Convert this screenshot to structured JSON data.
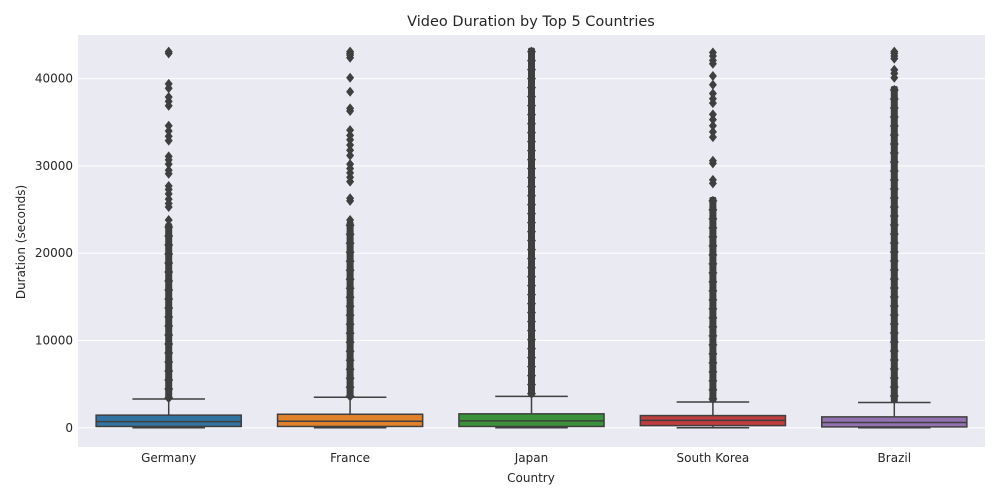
{
  "chart_data": {
    "type": "box",
    "title": "Video Duration by Top 5 Countries",
    "xlabel": "Country",
    "ylabel": "Duration (seconds)",
    "ylim": [
      -2200,
      45000
    ],
    "yticks": [
      0,
      10000,
      20000,
      30000,
      40000
    ],
    "grid": true,
    "style": "seaborn-darkgrid",
    "categories": [
      "Germany",
      "France",
      "Japan",
      "South Korea",
      "Brazil"
    ],
    "series": [
      {
        "category": "Germany",
        "color": "#3274a1",
        "whisker_low": 0,
        "q1": 150,
        "median": 700,
        "q3": 1450,
        "whisker_high": 3300,
        "outliers_dense": [
          3300,
          23000
        ],
        "outliers": [
          23800,
          25300,
          25700,
          26200,
          26800,
          27300,
          27700,
          29100,
          29500,
          30200,
          30700,
          31100,
          32900,
          33400,
          34000,
          34600,
          36900,
          37400,
          37900,
          38900,
          39400,
          42900,
          43100
        ]
      },
      {
        "category": "France",
        "color": "#e1812c",
        "whisker_low": 0,
        "q1": 150,
        "median": 750,
        "q3": 1550,
        "whisker_high": 3500,
        "outliers_dense": [
          3500,
          23200
        ],
        "outliers": [
          23800,
          26000,
          26300,
          28200,
          28700,
          29200,
          29700,
          30200,
          31200,
          31800,
          32400,
          33000,
          33500,
          34100,
          36300,
          36600,
          38500,
          40100,
          42400,
          42700,
          42900,
          43100
        ]
      },
      {
        "category": "Japan",
        "color": "#3a923a",
        "whisker_low": 0,
        "q1": 150,
        "median": 800,
        "q3": 1600,
        "whisker_high": 3600,
        "outliers_dense": [
          3600,
          43100
        ],
        "outliers": []
      },
      {
        "category": "South Korea",
        "color": "#c03d3e",
        "whisker_low": 0,
        "q1": 250,
        "median": 850,
        "q3": 1400,
        "whisker_high": 2950,
        "outliers_dense": [
          2950,
          26000
        ],
        "outliers": [
          28000,
          28400,
          30300,
          30600,
          33300,
          33900,
          34600,
          35300,
          35900,
          37200,
          37700,
          38300,
          39300,
          40300,
          41700,
          42100,
          42600,
          43000
        ]
      },
      {
        "category": "Brazil",
        "color": "#9372b2",
        "whisker_low": 0,
        "q1": 100,
        "median": 600,
        "q3": 1250,
        "whisker_high": 2900,
        "outliers_dense": [
          2900,
          38700
        ],
        "outliers": [
          40100,
          40600,
          41000,
          42300,
          42600,
          42900,
          43100
        ]
      }
    ]
  }
}
